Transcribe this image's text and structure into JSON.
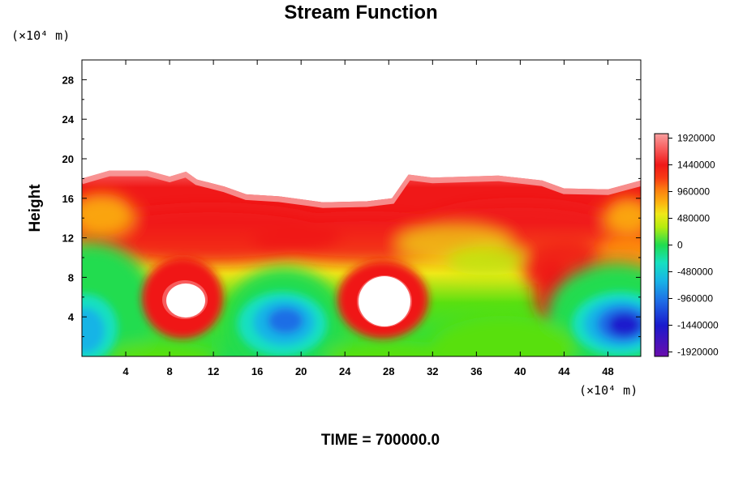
{
  "chart_data": {
    "type": "heatmap",
    "title": "Stream Function",
    "ylabel": "Height",
    "xlabel": "",
    "x_unit": "(×10⁴ m)",
    "y_unit": "(×10⁴ m)",
    "xlim": [
      0,
      51
    ],
    "ylim": [
      0,
      30
    ],
    "x_ticks": [
      4,
      8,
      12,
      16,
      20,
      24,
      28,
      32,
      36,
      40,
      44,
      48
    ],
    "y_ticks": [
      4,
      8,
      12,
      16,
      20,
      24,
      28
    ],
    "colorbar": {
      "min": -2000000,
      "max": 2000000,
      "ticks": [
        "1920000",
        "1440000",
        "960000",
        "480000",
        "0",
        "-480000",
        "-960000",
        "-1440000",
        "-1920000"
      ],
      "colors": [
        "#6a0dad",
        "#1a1acd",
        "#1e6ee6",
        "#18b4e6",
        "#16e0c0",
        "#20dc50",
        "#58e010",
        "#b4ec10",
        "#f0e818",
        "#fcb410",
        "#fc7c10",
        "#f83c14",
        "#f01818",
        "#f86464",
        "#f8a0a0"
      ]
    },
    "features": [
      {
        "label": "blue low",
        "x": 2.0,
        "y": 2.6,
        "value": -1150000
      },
      {
        "label": "cyan low",
        "x": 18.9,
        "y": 3.6,
        "value": -1300000
      },
      {
        "label": "blue low",
        "x": 48.5,
        "y": 3.2,
        "value": -1600000
      },
      {
        "label": "white high",
        "x": 9.5,
        "y": 5.8,
        "value": 2400000
      },
      {
        "label": "white high",
        "x": 27.3,
        "y": 5.0,
        "value": 2400000
      },
      {
        "label": "red band",
        "x": 25.0,
        "y": 13.5,
        "value": 1500000
      }
    ],
    "top_boundary": [
      [
        0,
        18.0
      ],
      [
        2.5,
        18.8
      ],
      [
        6,
        18.8
      ],
      [
        8,
        18.2
      ],
      [
        9.5,
        18.7
      ],
      [
        10.5,
        17.9
      ],
      [
        13,
        17.2
      ],
      [
        15,
        16.4
      ],
      [
        18,
        16.2
      ],
      [
        22,
        15.6
      ],
      [
        26,
        15.7
      ],
      [
        28.3,
        16.0
      ],
      [
        29.8,
        18.4
      ],
      [
        32,
        18.1
      ],
      [
        38,
        18.3
      ],
      [
        42,
        17.8
      ],
      [
        44,
        17.0
      ],
      [
        48,
        16.9
      ],
      [
        51,
        17.8
      ]
    ]
  },
  "time_label": "TIME = 700000.0"
}
